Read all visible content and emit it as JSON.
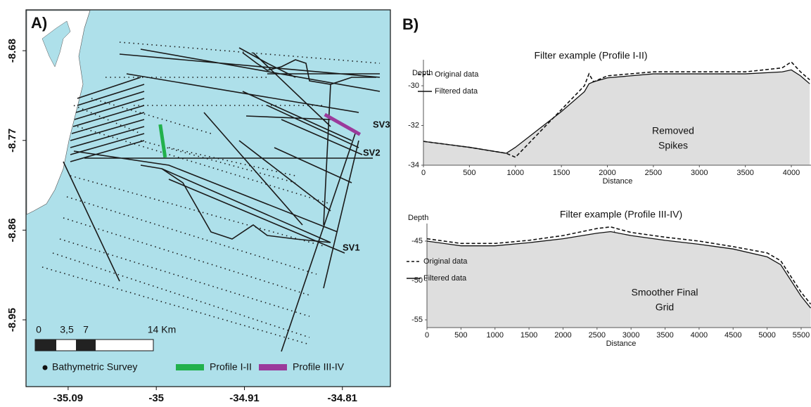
{
  "chart_data": [
    {
      "type": "map",
      "panel": "A)",
      "xlim": [
        -35.133,
        -34.761
      ],
      "ylim": [
        -9.017,
        -8.639
      ],
      "xticks": [
        -35.09,
        -35,
        -34.91,
        -34.81
      ],
      "yticks": [
        -8.68,
        -8.77,
        -8.86,
        -8.95
      ],
      "annotations": [
        "SV3",
        "SV2",
        "SV1"
      ],
      "scale_labels": [
        "0",
        "3,5",
        "7",
        "14 Km"
      ],
      "series": [
        {
          "name": "Bathymetric Survey",
          "color": "#111111"
        },
        {
          "name": "Profile I-II",
          "color": "#22b14c",
          "x": [
            -34.996,
            -34.991
          ],
          "y": [
            -8.754,
            -8.787
          ]
        },
        {
          "name": "Profile III-IV",
          "color": "#9b3a9b",
          "x": [
            -34.828,
            -34.792
          ],
          "y": [
            -8.744,
            -8.764
          ]
        }
      ]
    },
    {
      "type": "line",
      "panel": "B)",
      "title": "Filter example (Profile I-II)",
      "y_label": "Depth",
      "x_label": "Distance",
      "xlim": [
        0,
        4214
      ],
      "ylim": [
        -34,
        -28.69
      ],
      "xticks": [
        0,
        500,
        1000,
        1500,
        2000,
        2500,
        3000,
        3500,
        4000
      ],
      "yticks": [
        -34,
        -32,
        -30
      ],
      "annotation": [
        "Removed",
        "Spikes"
      ],
      "x": [
        0,
        500,
        900,
        1000,
        1500,
        1750,
        1800,
        1850,
        2000,
        2500,
        3000,
        3500,
        3900,
        4000,
        4100,
        4200
      ],
      "series": [
        {
          "name": "Original data",
          "color": "#111111",
          "dashed": true,
          "values": [
            -32.8,
            -33.1,
            -33.4,
            -33.6,
            -31.2,
            -30.0,
            -29.4,
            -29.8,
            -29.5,
            -29.3,
            -29.3,
            -29.3,
            -29.1,
            -28.8,
            -29.3,
            -29.7
          ]
        },
        {
          "name": "Filtered data",
          "color": "#111111",
          "dashed": false,
          "values": [
            -32.8,
            -33.1,
            -33.4,
            -33.1,
            -31.3,
            -30.3,
            -29.9,
            -29.8,
            -29.6,
            -29.4,
            -29.4,
            -29.4,
            -29.3,
            -29.2,
            -29.5,
            -29.9
          ]
        }
      ]
    },
    {
      "type": "line",
      "title": "Filter example (Profile III-IV)",
      "y_label": "Depth",
      "x_label": "Distance",
      "xlim": [
        0,
        5645
      ],
      "ylim": [
        -55.98,
        -42.77
      ],
      "xticks": [
        0,
        500,
        1000,
        1500,
        2000,
        2500,
        3000,
        3500,
        4000,
        4500,
        5000,
        5500
      ],
      "yticks": [
        -55,
        -50,
        -45
      ],
      "annotation": [
        "Smoother Final",
        "Grid"
      ],
      "x": [
        0,
        500,
        1000,
        1500,
        2000,
        2500,
        2700,
        3000,
        3500,
        4000,
        4500,
        5000,
        5200,
        5500,
        5640
      ],
      "series": [
        {
          "name": "Original data",
          "color": "#111111",
          "dashed": true,
          "values": [
            -44.7,
            -45.3,
            -45.3,
            -44.9,
            -44.3,
            -43.4,
            -43.2,
            -43.9,
            -44.5,
            -45.0,
            -45.7,
            -46.5,
            -47.5,
            -51.5,
            -53
          ]
        },
        {
          "name": "Filtered data",
          "color": "#111111",
          "dashed": false,
          "values": [
            -45,
            -45.6,
            -45.6,
            -45.2,
            -44.7,
            -44.0,
            -43.8,
            -44.3,
            -44.9,
            -45.4,
            -46.0,
            -47.0,
            -48.0,
            -52.0,
            -53.5
          ]
        }
      ]
    }
  ]
}
